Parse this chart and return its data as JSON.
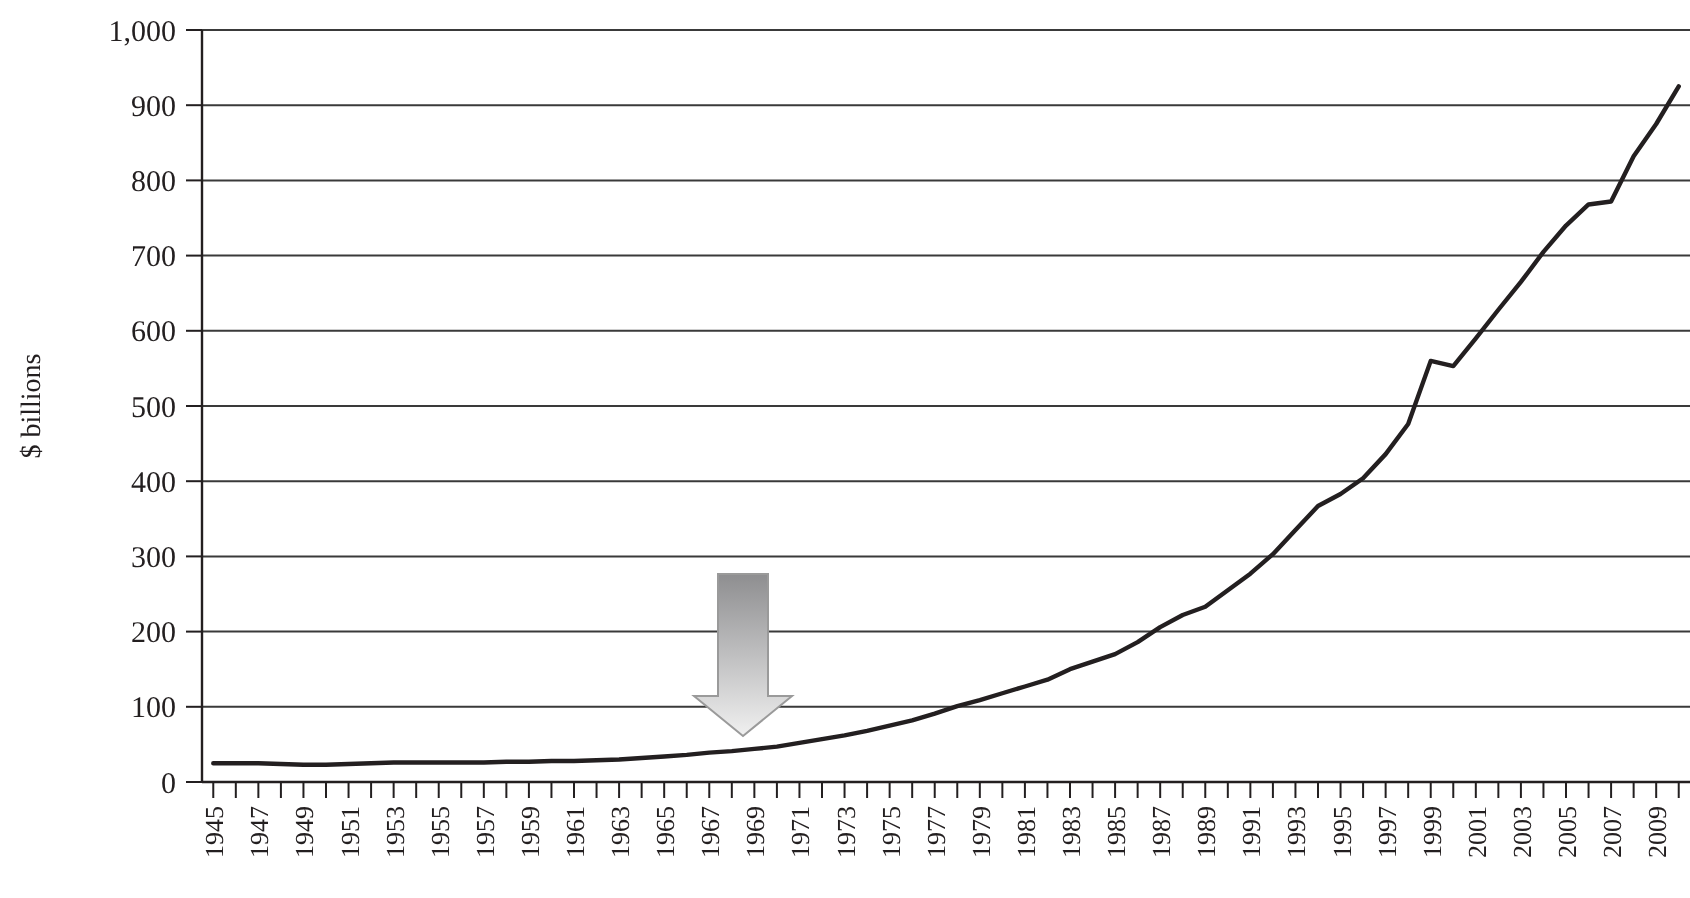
{
  "chart_data": {
    "type": "line",
    "ylabel": "$ billions",
    "categories": [
      "1945",
      null,
      "1947",
      null,
      "1949",
      null,
      "1951",
      null,
      "1953",
      null,
      "1955",
      null,
      "1957",
      null,
      "1959",
      null,
      "1961",
      null,
      "1963",
      null,
      "1965",
      null,
      "1967",
      null,
      "1969",
      null,
      "1971",
      null,
      "1973",
      null,
      "1975",
      null,
      "1977",
      null,
      "1979",
      null,
      "1981",
      null,
      "1983",
      null,
      "1985",
      null,
      "1987",
      null,
      "1989",
      null,
      "1991",
      null,
      "1993",
      null,
      "1995",
      null,
      "1997",
      null,
      "1999",
      null,
      "2001",
      null,
      "2003",
      null,
      "2005",
      null,
      "2007",
      null,
      "2009",
      null
    ],
    "series": [
      {
        "color": "#231f20",
        "values": [
          25,
          25,
          25,
          24,
          23,
          23,
          24,
          25,
          26,
          26,
          26,
          26,
          26,
          27,
          27,
          28,
          28,
          29,
          30,
          32,
          34,
          36,
          39,
          41,
          44,
          47,
          52,
          57,
          62,
          68,
          75,
          82,
          91,
          101,
          109,
          118,
          127,
          136,
          150,
          160,
          170,
          186,
          206,
          222,
          233,
          255,
          277,
          303,
          335,
          367,
          383,
          404,
          436,
          476,
          560,
          553,
          590,
          628,
          665,
          705,
          740,
          768,
          772,
          832,
          875,
          925
        ]
      }
    ],
    "ylim": [
      0,
      1000
    ],
    "yticks": [
      0,
      100,
      200,
      300,
      400,
      500,
      600,
      700,
      800,
      900,
      {
        "value": 1000,
        "label": "1,000"
      }
    ],
    "grid": "y",
    "marker": "none",
    "line_style": "solid"
  }
}
